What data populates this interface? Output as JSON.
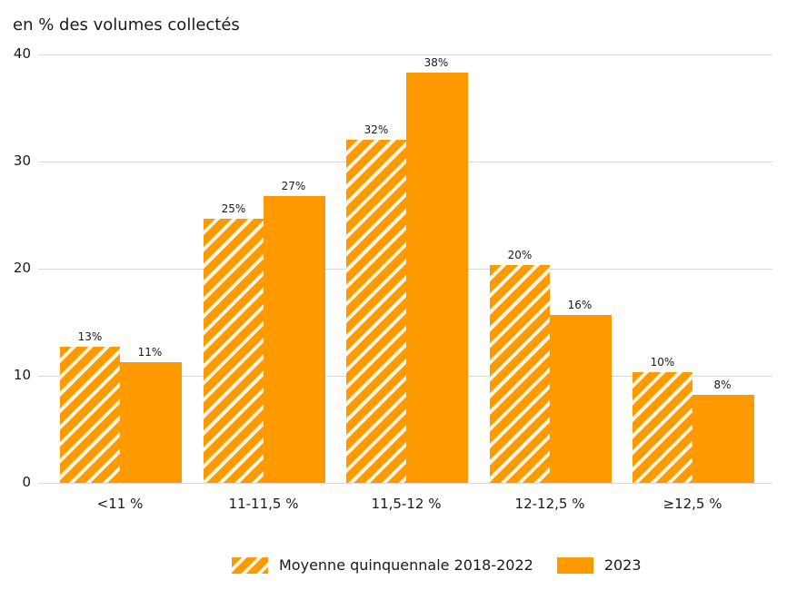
{
  "chart_data": {
    "type": "bar",
    "title": "",
    "ylabel": "en % des volumes collectés",
    "xlabel": "",
    "ylim": [
      0,
      40
    ],
    "yticks": [
      "0",
      "10",
      "20",
      "30",
      "40"
    ],
    "grid": true,
    "legend_position": "bottom",
    "categories": [
      "<11 %",
      "11-11,5 %",
      "11,5-12 %",
      "12-12,5 %",
      "≥12,5 %"
    ],
    "series": [
      {
        "name": "Moyenne quinquennale 2018-2022",
        "style": "hatched",
        "values": [
          12.7,
          24.7,
          32.0,
          20.3,
          10.3
        ],
        "labels": [
          "13%",
          "25%",
          "32%",
          "20%",
          "10%"
        ]
      },
      {
        "name": "2023",
        "style": "solid",
        "values": [
          11.3,
          26.8,
          38.3,
          15.7,
          8.2
        ],
        "labels": [
          "11%",
          "27%",
          "38%",
          "16%",
          "8%"
        ]
      }
    ],
    "colors": {
      "bar": "#ff9900",
      "hatch_stripe": "#fff6e0",
      "grid": "#d9d9d9"
    }
  }
}
